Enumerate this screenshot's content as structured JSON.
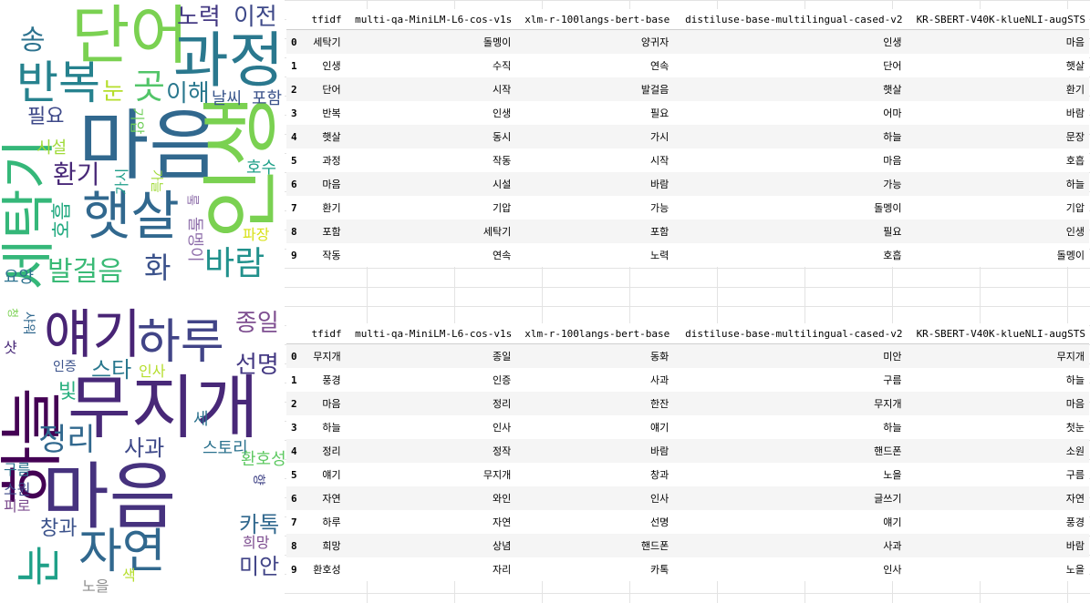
{
  "cloud1": {
    "words": [
      "단어",
      "과정",
      "반복",
      "마음",
      "햇살",
      "인생",
      "세탁기",
      "송",
      "노력",
      "이전",
      "곳",
      "눈",
      "이해",
      "날씨",
      "포함",
      "필요",
      "시설",
      "기압",
      "환기",
      "가시",
      "호흡",
      "돌멩이",
      "화",
      "바람",
      "발걸음",
      "요양",
      "호수",
      "파장",
      "돌",
      "가늘"
    ],
    "colors": {
      "마음": "#31688e",
      "인생": "#7ad151",
      "세탁기": "#35b779",
      "햇살": "#31688e",
      "과정": "#2a788e",
      "단어": "#7ad151",
      "반복": "#26828e",
      "바람": "#21918c",
      "화": "#3b528b"
    }
  },
  "cloud2": {
    "words": [
      "무지개",
      "마음",
      "하늘",
      "얘기",
      "하루",
      "정리",
      "눈",
      "자연",
      "종일",
      "선명",
      "스타",
      "빛",
      "인증",
      "인사",
      "사과",
      "스토리",
      "환호성",
      "소원",
      "피로",
      "창과",
      "카톡",
      "희망",
      "미안",
      "노을",
      "색",
      "구름",
      "향",
      "샤워",
      "샷",
      "청",
      "세"
    ]
  },
  "tables": {
    "headers": [
      "",
      "tfidf",
      "multi-qa-MiniLM-L6-cos-v1s",
      "xlm-r-100langs-bert-base",
      "distiluse-base-multilingual-cased-v2",
      "KR-SBERT-V40K-klueNLI-augSTS"
    ],
    "table1": [
      [
        "0",
        "세탁기",
        "돌멩이",
        "양귀자",
        "인생",
        "마음"
      ],
      [
        "1",
        "인생",
        "수직",
        "연속",
        "단어",
        "햇살"
      ],
      [
        "2",
        "단어",
        "시작",
        "발걸음",
        "햇살",
        "환기"
      ],
      [
        "3",
        "반복",
        "인생",
        "필요",
        "어마",
        "바람"
      ],
      [
        "4",
        "햇살",
        "동시",
        "가시",
        "하늘",
        "문장"
      ],
      [
        "5",
        "과정",
        "작동",
        "시작",
        "마음",
        "호흡"
      ],
      [
        "6",
        "마음",
        "시설",
        "바람",
        "가능",
        "하늘"
      ],
      [
        "7",
        "환기",
        "기압",
        "가능",
        "돌멩이",
        "기압"
      ],
      [
        "8",
        "포함",
        "세탁기",
        "포함",
        "필요",
        "인생"
      ],
      [
        "9",
        "작동",
        "연속",
        "노력",
        "호흡",
        "돌멩이"
      ]
    ],
    "table2": [
      [
        "0",
        "무지개",
        "종일",
        "동화",
        "미안",
        "무지개"
      ],
      [
        "1",
        "풍경",
        "인증",
        "사과",
        "구름",
        "하늘"
      ],
      [
        "2",
        "마음",
        "정리",
        "한잔",
        "무지개",
        "마음"
      ],
      [
        "3",
        "하늘",
        "인사",
        "얘기",
        "하늘",
        "첫눈"
      ],
      [
        "4",
        "정리",
        "정작",
        "바람",
        "핸드폰",
        "소원"
      ],
      [
        "5",
        "얘기",
        "무지개",
        "창과",
        "노을",
        "구름"
      ],
      [
        "6",
        "자연",
        "와인",
        "인사",
        "글쓰기",
        "자연"
      ],
      [
        "7",
        "하루",
        "자연",
        "선명",
        "얘기",
        "풍경"
      ],
      [
        "8",
        "희망",
        "상념",
        "핸드폰",
        "사과",
        "바람"
      ],
      [
        "9",
        "환호성",
        "자리",
        "카톡",
        "인사",
        "노을"
      ]
    ]
  }
}
